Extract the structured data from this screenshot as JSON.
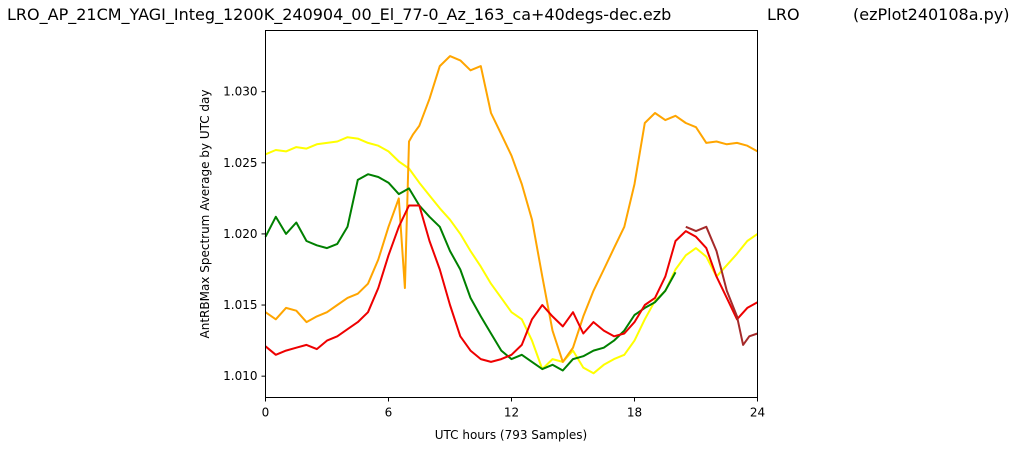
{
  "header": {
    "file": "LRO_AP_21CM_YAGI_Integ_1200K_240904_00_El_77-0_Az_163_ca+40degs-dec.ezb",
    "site": "LRO",
    "program": "(ezPlot240108a.py)"
  },
  "chart_data": {
    "type": "line",
    "xlabel": "UTC hours  (793 Samples)",
    "ylabel": "AntRBMax Spectrum Average by UTC day",
    "xlim": [
      0,
      24
    ],
    "ylim": [
      1.0085,
      1.0343
    ],
    "xticks": [
      0,
      6,
      12,
      18,
      24
    ],
    "yticks": [
      1.01,
      1.015,
      1.02,
      1.025,
      1.03
    ],
    "ytick_labels": [
      "1.010",
      "1.015",
      "1.020",
      "1.025",
      "1.030"
    ],
    "grid": false,
    "series": [
      {
        "color": "#ffff00",
        "x": [
          0,
          0.5,
          1,
          1.5,
          2,
          2.5,
          3,
          3.5,
          4,
          4.5,
          5,
          5.5,
          6,
          6.5,
          7,
          7.5,
          8,
          8.5,
          9,
          9.5,
          10,
          10.5,
          11,
          11.5,
          12,
          12.5,
          13,
          13.5,
          14,
          14.5,
          15,
          15.5,
          16,
          16.5,
          17,
          17.5,
          18,
          18.5,
          19,
          19.5,
          20,
          20.5,
          21,
          21.5,
          22,
          22.5,
          23,
          23.5,
          24
        ],
        "y": [
          1.0256,
          1.0259,
          1.0258,
          1.0261,
          1.026,
          1.0263,
          1.0264,
          1.0265,
          1.0268,
          1.0267,
          1.0264,
          1.0262,
          1.0258,
          1.0251,
          1.0246,
          1.0236,
          1.0227,
          1.0218,
          1.021,
          1.02,
          1.0188,
          1.0177,
          1.0165,
          1.0155,
          1.0145,
          1.014,
          1.0125,
          1.0105,
          1.0112,
          1.011,
          1.0118,
          1.0106,
          1.0102,
          1.0108,
          1.0112,
          1.0115,
          1.0125,
          1.014,
          1.0153,
          1.016,
          1.0175,
          1.0185,
          1.019,
          1.0184,
          1.017,
          1.0178,
          1.0186,
          1.0195,
          1.02
        ]
      },
      {
        "color": "#ffa500",
        "x": [
          0,
          0.5,
          1,
          1.5,
          2,
          2.5,
          3,
          3.5,
          4,
          4.5,
          5,
          5.5,
          6,
          6.5,
          6.8,
          7,
          7.2,
          7.5,
          8,
          8.5,
          9,
          9.5,
          10,
          10.5,
          11,
          11.5,
          12,
          12.5,
          13,
          13.5,
          14,
          14.5,
          15,
          15.5,
          16,
          16.5,
          17,
          17.5,
          18,
          18.5,
          19,
          19.5,
          20,
          20.5,
          21,
          21.5,
          22,
          22.5,
          23,
          23.5,
          24
        ],
        "y": [
          1.0145,
          1.014,
          1.0148,
          1.0146,
          1.0138,
          1.0142,
          1.0145,
          1.015,
          1.0155,
          1.0158,
          1.0165,
          1.0182,
          1.0205,
          1.0225,
          1.0162,
          1.0265,
          1.027,
          1.0276,
          1.0295,
          1.0318,
          1.0325,
          1.0322,
          1.0315,
          1.0318,
          1.0285,
          1.027,
          1.0255,
          1.0235,
          1.021,
          1.017,
          1.0132,
          1.011,
          1.012,
          1.0142,
          1.016,
          1.0175,
          1.019,
          1.0205,
          1.0235,
          1.0278,
          1.0285,
          1.028,
          1.0283,
          1.0278,
          1.0275,
          1.0264,
          1.0265,
          1.0263,
          1.0264,
          1.0262,
          1.0258
        ]
      },
      {
        "color": "#008000",
        "x": [
          0,
          0.5,
          1,
          1.5,
          2,
          2.5,
          3,
          3.5,
          4,
          4.5,
          5,
          5.5,
          6,
          6.5,
          7,
          7.5,
          8,
          8.5,
          9,
          9.5,
          10,
          10.5,
          11,
          11.5,
          12,
          12.5,
          13,
          13.5,
          14,
          14.5,
          15,
          15.5,
          16,
          16.5,
          17,
          17.5,
          18,
          18.5,
          19,
          19.5,
          20
        ],
        "y": [
          1.0198,
          1.0212,
          1.02,
          1.0208,
          1.0195,
          1.0192,
          1.019,
          1.0193,
          1.0205,
          1.0238,
          1.0242,
          1.024,
          1.0236,
          1.0228,
          1.0232,
          1.022,
          1.0212,
          1.0205,
          1.0188,
          1.0175,
          1.0155,
          1.0142,
          1.013,
          1.0118,
          1.0112,
          1.0115,
          1.011,
          1.0105,
          1.0108,
          1.0104,
          1.0112,
          1.0114,
          1.0118,
          1.012,
          1.0125,
          1.0132,
          1.0143,
          1.0148,
          1.0152,
          1.016,
          1.0173
        ]
      },
      {
        "color": "#ee0000",
        "x": [
          0,
          0.5,
          1,
          1.5,
          2,
          2.5,
          3,
          3.5,
          4,
          4.5,
          5,
          5.5,
          6,
          6.5,
          7,
          7.5,
          8,
          8.5,
          9,
          9.5,
          10,
          10.5,
          11,
          11.5,
          12,
          12.5,
          13,
          13.5,
          14,
          14.5,
          15,
          15.5,
          16,
          16.5,
          17,
          17.5,
          18,
          18.5,
          19,
          19.5,
          20,
          20.5,
          21,
          21.5,
          22,
          22.5,
          23,
          23.5,
          24
        ],
        "y": [
          1.0121,
          1.0115,
          1.0118,
          1.012,
          1.0122,
          1.0119,
          1.0125,
          1.0128,
          1.0133,
          1.0138,
          1.0145,
          1.0162,
          1.0185,
          1.0205,
          1.022,
          1.022,
          1.0195,
          1.0175,
          1.015,
          1.0128,
          1.0118,
          1.0112,
          1.011,
          1.0112,
          1.0115,
          1.0122,
          1.014,
          1.015,
          1.0142,
          1.0135,
          1.0145,
          1.013,
          1.0138,
          1.0132,
          1.0128,
          1.013,
          1.0138,
          1.015,
          1.0155,
          1.017,
          1.0195,
          1.0202,
          1.0198,
          1.019,
          1.017,
          1.0155,
          1.014,
          1.0148,
          1.0152
        ]
      },
      {
        "color": "#a52a2a",
        "x": [
          20.5,
          21,
          21.5,
          22,
          22.5,
          23,
          23.3,
          23.6,
          24
        ],
        "y": [
          1.0205,
          1.0202,
          1.0205,
          1.0188,
          1.016,
          1.0142,
          1.0122,
          1.0128,
          1.013
        ]
      }
    ]
  }
}
